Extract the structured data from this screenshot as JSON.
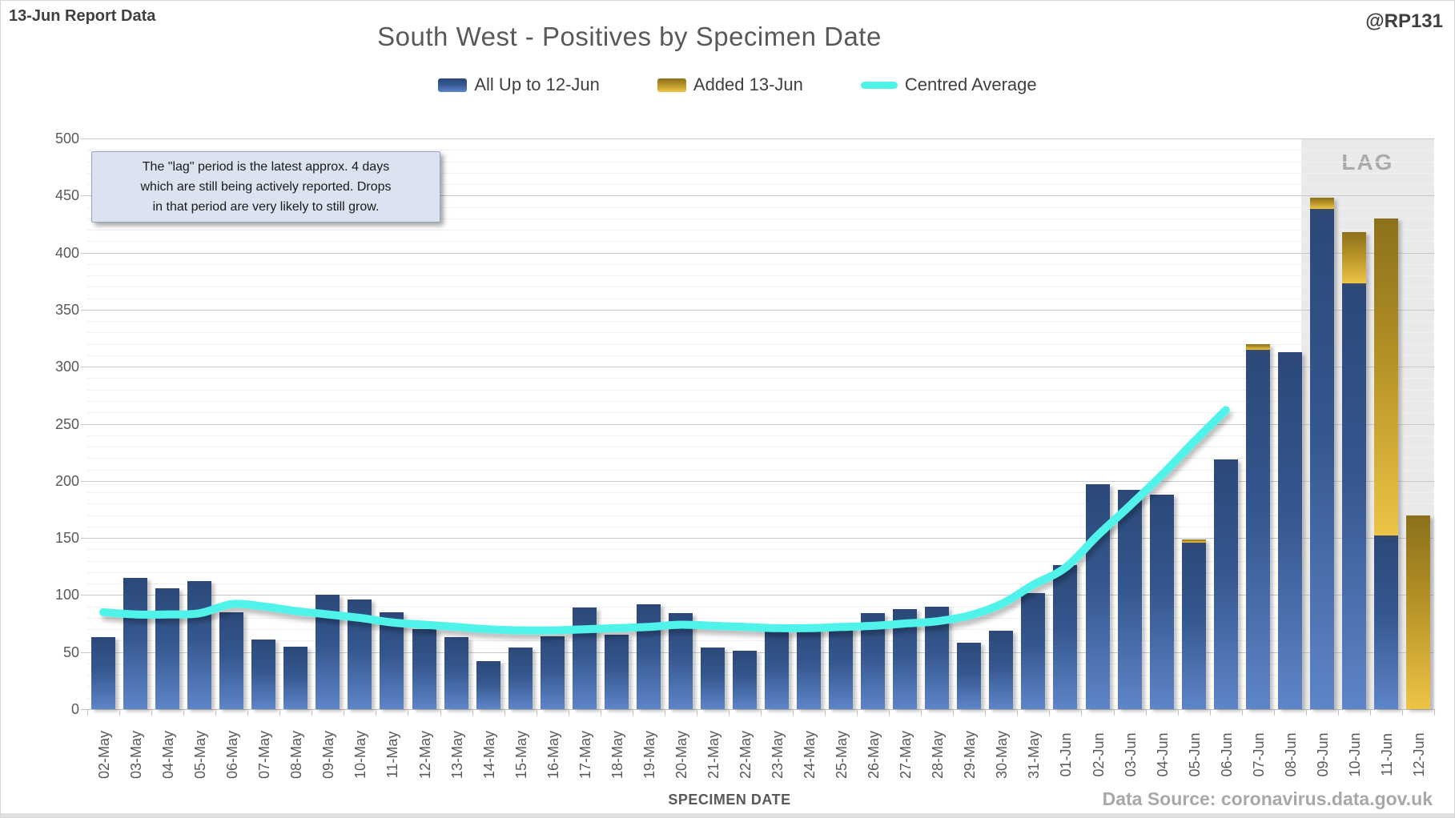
{
  "header": {
    "report_label": "13-Jun Report Data",
    "title": "South West - Positives by Specimen Date",
    "handle": "@RP131"
  },
  "legend": [
    {
      "label": "All Up to 12-Jun",
      "swatch": "blue-bar-swatch"
    },
    {
      "label": "Added 13-Jun",
      "swatch": "gold-bar-swatch"
    },
    {
      "label": "Centred Average",
      "swatch": "cyan-line-swatch"
    }
  ],
  "annotation": {
    "lines": [
      "The \"lag\" period is the latest approx. 4 days",
      "which are still being actively reported.  Drops",
      "in that period are very likely to still grow."
    ]
  },
  "lag_label": "LAG",
  "axes": {
    "x_title": "SPECIMEN DATE",
    "y_ticks": [
      0,
      50,
      100,
      150,
      200,
      250,
      300,
      350,
      400,
      450,
      500
    ]
  },
  "footer": {
    "source": "Data Source: coronavirus.data.gov.uk"
  },
  "colors": {
    "bar_blue_top": "#2b4878",
    "bar_blue_bottom": "#5e85c9",
    "bar_gold_top": "#8c701c",
    "bar_gold_bottom": "#edc446",
    "line_cyan": "#4ff3e9",
    "lag_band": "#eaeaea",
    "title_gray": "#595959",
    "annotation_fill": "#dbe3f1"
  },
  "chart_data": {
    "type": "bar",
    "title": "South West - Positives by Specimen Date",
    "xlabel": "SPECIMEN DATE",
    "ylabel": "",
    "ylim": [
      0,
      500
    ],
    "grid": "horizontal, minor every 10, major every 50",
    "legend_position": "top",
    "lag_start_category": "09-Jun",
    "categories": [
      "02-May",
      "03-May",
      "04-May",
      "05-May",
      "06-May",
      "07-May",
      "08-May",
      "09-May",
      "10-May",
      "11-May",
      "12-May",
      "13-May",
      "14-May",
      "15-May",
      "16-May",
      "17-May",
      "18-May",
      "19-May",
      "20-May",
      "21-May",
      "22-May",
      "23-May",
      "24-May",
      "25-May",
      "26-May",
      "27-May",
      "28-May",
      "29-May",
      "30-May",
      "31-May",
      "01-Jun",
      "02-Jun",
      "03-Jun",
      "04-Jun",
      "05-Jun",
      "06-Jun",
      "07-Jun",
      "08-Jun",
      "09-Jun",
      "10-Jun",
      "11-Jun",
      "12-Jun"
    ],
    "series": [
      {
        "name": "All Up to 12-Jun",
        "render": "bar-stacked-base",
        "values": [
          63,
          115,
          106,
          112,
          85,
          61,
          55,
          100,
          96,
          85,
          70,
          63,
          42,
          54,
          64,
          89,
          65,
          92,
          84,
          54,
          51,
          68,
          73,
          74,
          84,
          88,
          90,
          58,
          69,
          102,
          126,
          197,
          192,
          188,
          146,
          219,
          315,
          313,
          438,
          373,
          152,
          0
        ]
      },
      {
        "name": "Added 13-Jun",
        "render": "bar-stacked-top",
        "values": [
          0,
          0,
          0,
          0,
          0,
          0,
          0,
          0,
          0,
          0,
          0,
          0,
          0,
          0,
          0,
          0,
          0,
          0,
          0,
          0,
          0,
          0,
          0,
          0,
          0,
          0,
          0,
          0,
          0,
          0,
          0,
          0,
          0,
          0,
          3,
          0,
          5,
          0,
          10,
          45,
          278,
          170
        ]
      },
      {
        "name": "Centred Average",
        "render": "line",
        "values": [
          85,
          83,
          83,
          84,
          92,
          90,
          86,
          83,
          80,
          76,
          74,
          72,
          70,
          69,
          69,
          70,
          71,
          72,
          74,
          73,
          72,
          71,
          71,
          72,
          73,
          75,
          77,
          82,
          92,
          109,
          124,
          152,
          178,
          205,
          234,
          262,
          null,
          null,
          null,
          null,
          null,
          null
        ]
      }
    ]
  }
}
